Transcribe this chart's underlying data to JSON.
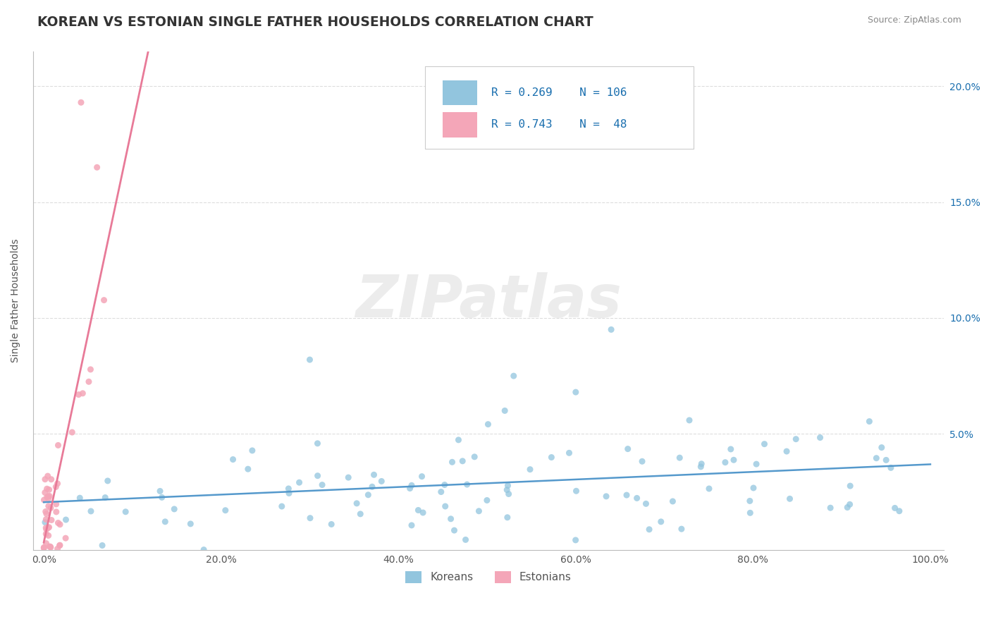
{
  "title": "KOREAN VS ESTONIAN SINGLE FATHER HOUSEHOLDS CORRELATION CHART",
  "source": "Source: ZipAtlas.com",
  "ylabel": "Single Father Households",
  "watermark": "ZIPatlas",
  "korean_R": 0.269,
  "korean_N": 106,
  "estonian_R": 0.743,
  "estonian_N": 48,
  "korean_color": "#92c5de",
  "estonian_color": "#f4a6b8",
  "korean_line_color": "#5599cc",
  "estonian_line_color": "#e87a98",
  "legend_text_color": "#1a6faf",
  "ytick_vals": [
    0.05,
    0.1,
    0.15,
    0.2
  ],
  "ytick_labels_right": [
    "5.0%",
    "10.0%",
    "15.0%",
    "20.0%"
  ],
  "xtick_vals": [
    0.0,
    0.2,
    0.4,
    0.6,
    0.8,
    1.0
  ],
  "xtick_labels": [
    "0.0%",
    "20.0%",
    "40.0%",
    "60.0%",
    "80.0%",
    "100.0%"
  ],
  "grid_color": "#dddddd",
  "bg_color": "#ffffff",
  "title_color": "#333333",
  "source_color": "#888888",
  "axis_label_color": "#555555",
  "tick_label_color": "#555555",
  "right_tick_color": "#1a6faf"
}
